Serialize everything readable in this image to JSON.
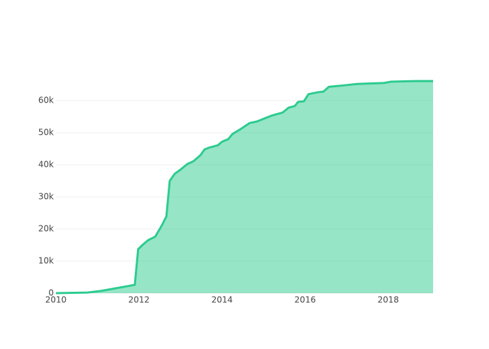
{
  "chart_data": {
    "type": "area",
    "x": [
      2010,
      2010.76,
      2011.09,
      2011.9,
      2011.98,
      2012.1,
      2012.22,
      2012.39,
      2012.55,
      2012.66,
      2012.74,
      2012.86,
      2013.0,
      2013.16,
      2013.31,
      2013.48,
      2013.58,
      2013.7,
      2013.9,
      2014.0,
      2014.15,
      2014.25,
      2014.42,
      2014.66,
      2014.84,
      2015.21,
      2015.46,
      2015.6,
      2015.75,
      2015.83,
      2015.97,
      2016.08,
      2016.3,
      2016.44,
      2016.57,
      2016.97,
      2017.26,
      2017.9,
      2018.07,
      2018.66,
      2019.08
    ],
    "series": [
      {
        "color": "#2dcb8f",
        "values": [
          0,
          200,
          700,
          2600,
          13700,
          15200,
          16500,
          17600,
          21100,
          23900,
          35000,
          37200,
          38500,
          40200,
          41100,
          43000,
          44800,
          45400,
          46100,
          47200,
          48000,
          49600,
          50900,
          53000,
          53500,
          55400,
          56300,
          57800,
          58300,
          59600,
          59800,
          62000,
          62600,
          62800,
          64300,
          64800,
          65200,
          65500,
          65900,
          66100,
          66100
        ]
      }
    ],
    "xlim": [
      2010,
      2019.08
    ],
    "xticks": [
      2010,
      2012,
      2014,
      2016,
      2018
    ],
    "ylim": [
      0,
      69600
    ],
    "yticks": [
      0,
      {
        "value": 10000,
        "label": "10k"
      },
      {
        "value": 20000,
        "label": "20k"
      },
      {
        "value": 30000,
        "label": "30k"
      },
      {
        "value": 40000,
        "label": "40k"
      },
      {
        "value": 50000,
        "label": "50k"
      },
      {
        "value": 60000,
        "label": "60k"
      }
    ],
    "grid": true
  }
}
